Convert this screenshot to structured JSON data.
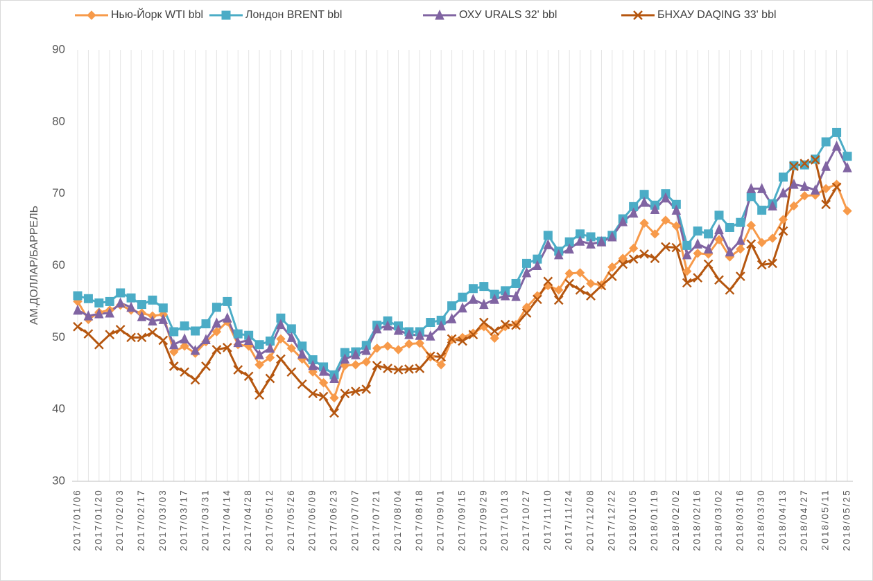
{
  "chart_data": {
    "type": "line",
    "y_label": "АМ.ДОЛЛАР/БАРРЕЛЬ",
    "categories": [
      "2017/01/06",
      null,
      "2017/01/20",
      null,
      "2017/02/03",
      null,
      "2017/02/17",
      null,
      "2017/03/03",
      null,
      "2017/03/17",
      null,
      "2017/03/31",
      null,
      "2017/04/14",
      null,
      "2017/04/28",
      null,
      "2017/05/12",
      null,
      "2017/05/26",
      null,
      "2017/06/09",
      null,
      "2017/06/23",
      null,
      "2017/07/07",
      null,
      "2017/07/21",
      null,
      "2017/08/04",
      null,
      "2017/08/18",
      null,
      "2017/09/01",
      null,
      "2017/09/15",
      null,
      "2017/09/29",
      null,
      "2017/10/13",
      null,
      "2017/10/27",
      null,
      "2017/11/10",
      null,
      "2017/11/24",
      null,
      "2017/12/08",
      null,
      "2017/12/22",
      null,
      "2018/01/05",
      null,
      "2018/01/19",
      null,
      "2018/02/02",
      null,
      "2018/02/16",
      null,
      "2018/03/02",
      null,
      "2018/03/16",
      null,
      "2018/03/30",
      null,
      "2018/04/13",
      null,
      "2018/04/27",
      null,
      "2018/05/11",
      null,
      "2018/05/25"
    ],
    "series": [
      {
        "name": "Нью-Йорк WTI bbl",
        "color": "#f79a4a",
        "marker": "diamond",
        "values": [
          55.0,
          52.5,
          53.5,
          53.8,
          54.5,
          53.8,
          53.4,
          53.0,
          53.2,
          48.0,
          48.8,
          47.8,
          49.4,
          50.8,
          52.2,
          49.0,
          48.8,
          46.2,
          47.2,
          49.8,
          48.5,
          47.0,
          45.2,
          43.7,
          41.6,
          46.1,
          46.2,
          46.6,
          48.5,
          48.8,
          48.3,
          49.1,
          49.2,
          47.3,
          46.2,
          49.7,
          50.0,
          50.6,
          51.5,
          49.9,
          51.5,
          51.8,
          54.2,
          55.8,
          57.2,
          56.6,
          58.9,
          59.0,
          57.5,
          57.3,
          59.8,
          61.0,
          62.4,
          65.9,
          64.4,
          66.3,
          65.5,
          59.2,
          61.7,
          61.6,
          63.6,
          61.2,
          62.3,
          65.6,
          63.2,
          63.8,
          66.4,
          68.3,
          69.7,
          69.8,
          70.7,
          71.3,
          67.6
        ]
      },
      {
        "name": "Лондон BRENT bbl",
        "color": "#4bacc6",
        "marker": "square",
        "values": [
          55.8,
          55.4,
          54.8,
          55.0,
          56.2,
          55.5,
          54.6,
          55.2,
          54.1,
          50.8,
          51.6,
          50.9,
          51.9,
          54.2,
          55.0,
          50.5,
          50.3,
          49.0,
          49.5,
          52.7,
          51.2,
          48.8,
          46.9,
          45.9,
          44.8,
          47.9,
          48.0,
          48.9,
          51.7,
          52.3,
          51.6,
          50.8,
          50.8,
          52.1,
          52.4,
          54.4,
          55.6,
          56.8,
          57.1,
          56.0,
          56.5,
          57.5,
          60.3,
          60.9,
          64.2,
          62.0,
          63.3,
          64.4,
          64.0,
          63.4,
          64.2,
          66.5,
          68.2,
          69.9,
          68.4,
          70.0,
          68.5,
          62.8,
          64.8,
          64.4,
          67.0,
          65.3,
          66.0,
          69.6,
          67.7,
          68.6,
          72.3,
          73.9,
          74.0,
          74.8,
          77.2,
          78.5,
          75.2
        ]
      },
      {
        "name": "ОХУ URALS 32' bbl",
        "color": "#8064a2",
        "marker": "triangle",
        "values": [
          53.8,
          53.0,
          53.3,
          53.4,
          54.8,
          54.2,
          52.9,
          52.3,
          52.5,
          49.0,
          49.8,
          48.2,
          49.7,
          52.0,
          52.7,
          49.3,
          49.6,
          47.6,
          48.5,
          51.8,
          50.0,
          47.7,
          46.1,
          45.3,
          44.3,
          47.0,
          47.6,
          48.2,
          51.2,
          51.6,
          51.0,
          50.4,
          50.3,
          50.2,
          51.6,
          52.6,
          54.1,
          55.3,
          54.6,
          55.3,
          55.8,
          55.7,
          59.0,
          60.0,
          62.9,
          61.5,
          62.3,
          63.4,
          63.0,
          63.3,
          64.0,
          66.1,
          67.3,
          68.8,
          67.8,
          69.4,
          67.7,
          61.5,
          63.0,
          62.3,
          65.0,
          61.9,
          63.5,
          70.7,
          70.7,
          68.3,
          70.1,
          71.3,
          71.0,
          70.5,
          73.8,
          76.6,
          73.6
        ]
      },
      {
        "name": "БНХАУ DAQING 33' bbl",
        "color": "#b5560f",
        "marker": "x",
        "values": [
          51.5,
          50.5,
          49.0,
          50.4,
          51.1,
          50.0,
          50.0,
          50.7,
          49.6,
          46.0,
          45.2,
          44.1,
          46.0,
          48.3,
          48.6,
          45.5,
          44.6,
          42.0,
          44.3,
          47.0,
          45.2,
          43.5,
          42.2,
          41.8,
          39.5,
          42.2,
          42.5,
          42.8,
          46.1,
          45.7,
          45.5,
          45.6,
          45.7,
          47.4,
          47.3,
          49.8,
          49.5,
          50.4,
          52.1,
          50.9,
          51.8,
          51.7,
          53.4,
          55.3,
          57.8,
          55.2,
          57.5,
          56.6,
          55.8,
          57.2,
          58.5,
          60.2,
          60.9,
          61.6,
          61.0,
          62.6,
          62.5,
          57.6,
          58.3,
          60.2,
          58.0,
          56.6,
          58.5,
          63.0,
          60.1,
          60.3,
          64.8,
          73.8,
          74.2,
          74.7,
          68.5,
          70.9,
          null
        ]
      }
    ],
    "ylim": [
      30,
      90
    ],
    "yticks": [
      30,
      40,
      50,
      60,
      70,
      80,
      90
    ],
    "grid": "vertical",
    "legend": "top"
  }
}
